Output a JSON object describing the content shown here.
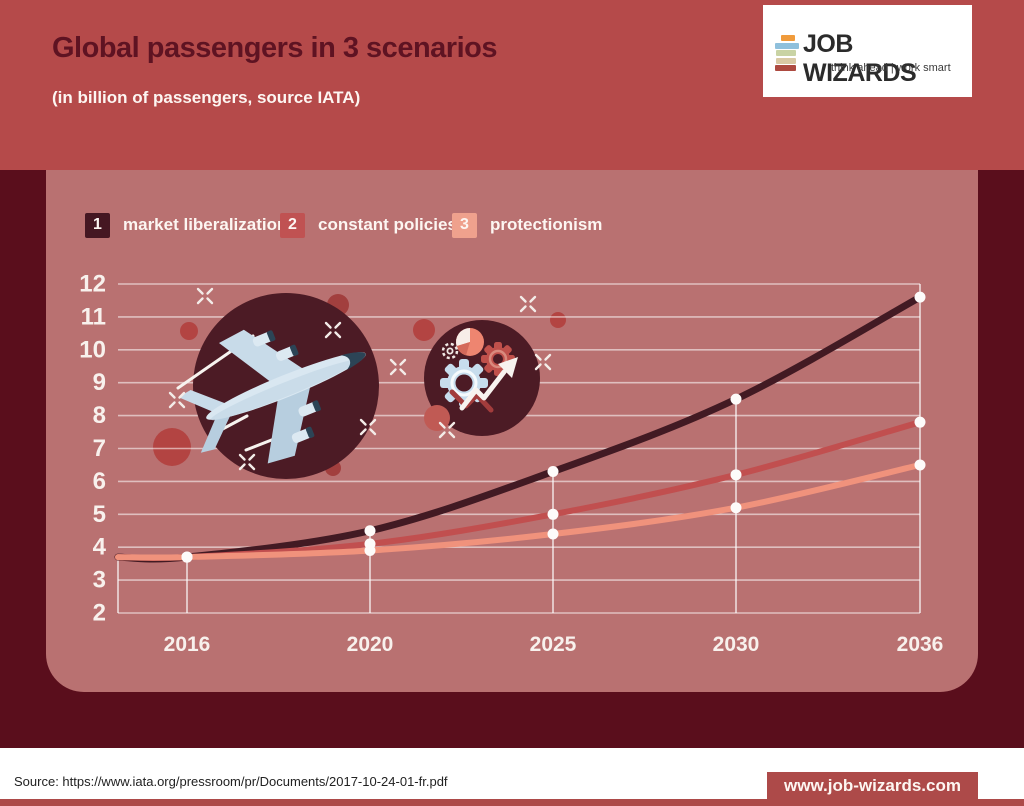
{
  "header": {
    "title": "Global passengers in 3 scenarios",
    "subtitle": "(in billion of passengers, source IATA)"
  },
  "logo": {
    "name": "JOB WIZARDS",
    "tagline": "think ahead | work smart",
    "bar_colors": [
      "#f09b3c",
      "#8fc0dc",
      "#c9d3a4",
      "#d9c9a4",
      "#ad4a40"
    ]
  },
  "legend": {
    "items": [
      {
        "number": "1",
        "label": "market liberalization",
        "color": "#451722"
      },
      {
        "number": "2",
        "label": "constant policies",
        "color": "#c05252"
      },
      {
        "number": "3",
        "label": "protectionism",
        "color": "#efa18d"
      }
    ]
  },
  "chart_data": {
    "type": "line",
    "title": "Global passengers in 3 scenarios",
    "subtitle": "(in billion of passengers, source IATA)",
    "categories": [
      "2016",
      "2020",
      "2025",
      "2030",
      "2036"
    ],
    "series": [
      {
        "name": "market liberalization",
        "color": "#421a23",
        "values": [
          3.7,
          4.5,
          6.3,
          8.5,
          11.6
        ]
      },
      {
        "name": "constant policies",
        "color": "#c14f4f",
        "values": [
          3.7,
          4.1,
          5.0,
          6.2,
          7.8
        ]
      },
      {
        "name": "protectionism",
        "color": "#f0927c",
        "values": [
          3.7,
          3.9,
          4.4,
          5.2,
          6.5
        ]
      }
    ],
    "xlabel": "",
    "ylabel": "",
    "ylim": [
      2,
      12
    ],
    "yticks": [
      2,
      3,
      4,
      5,
      6,
      7,
      8,
      9,
      10,
      11,
      12
    ],
    "x_spacing": "categorical",
    "grid": true,
    "legend_position": "top",
    "markers": "white dots with drop lines to x-axis"
  },
  "footer": {
    "source": "Source: https://www.iata.org/pressroom/pr/Documents/2017-10-24-01-fr.pdf",
    "website": "www.job-wizards.com"
  },
  "colors": {
    "header_band": "#b54a4a",
    "dark_background": "#5a0e1c",
    "panel": "#b97171",
    "illustration_circle": "#4c1b25",
    "gridline": "rgba(255,255,255,0.55)",
    "accent_red_box": "#ad4a49"
  }
}
